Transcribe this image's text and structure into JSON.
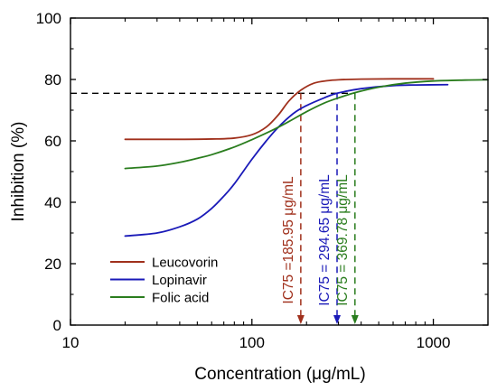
{
  "chart_data": {
    "type": "line",
    "xlabel": "Concentration (μg/mL)",
    "ylabel": "Inhibition (%)",
    "xscale": "log",
    "xlim": [
      10,
      2000
    ],
    "ylim": [
      0,
      100
    ],
    "x_ticks": [
      10,
      100,
      1000
    ],
    "x_tick_labels": [
      "10",
      "100",
      "1000"
    ],
    "y_ticks": [
      0,
      20,
      40,
      60,
      80,
      100
    ],
    "y_tick_labels": [
      "0",
      "20",
      "40",
      "60",
      "80",
      "100"
    ],
    "grid": false,
    "legend_position": "bottom-left",
    "series": [
      {
        "name": "Leucovorin",
        "color": "#a0301c",
        "x": [
          20,
          40,
          60,
          80,
          100,
          120,
          140,
          160,
          185.95,
          220,
          260,
          300,
          400,
          600,
          1000
        ],
        "y": [
          60.5,
          60.5,
          60.6,
          60.9,
          62,
          64.5,
          68.5,
          73,
          76.5,
          78.8,
          79.6,
          79.9,
          80.1,
          80.2,
          80.2
        ]
      },
      {
        "name": "Lopinavir",
        "color": "#1a1ab8",
        "x": [
          20,
          30,
          40,
          50,
          60,
          70,
          80,
          100,
          120,
          140,
          170,
          200,
          250,
          294.65,
          400,
          600,
          800,
          1200
        ],
        "y": [
          29,
          30,
          32,
          34.5,
          38,
          42,
          46,
          54,
          60,
          64.5,
          69,
          71.5,
          74,
          75.5,
          77,
          78,
          78.2,
          78.3
        ]
      },
      {
        "name": "Folic acid",
        "color": "#2a7d1e",
        "x": [
          20,
          30,
          40,
          50,
          60,
          80,
          100,
          130,
          160,
          200,
          250,
          300,
          369.78,
          500,
          700,
          1000,
          1500,
          2000
        ],
        "y": [
          51,
          51.8,
          53,
          54.3,
          55.5,
          58,
          60.4,
          63.5,
          66.3,
          69.5,
          72.3,
          74,
          75.7,
          77.5,
          78.8,
          79.5,
          79.8,
          79.9
        ]
      }
    ],
    "reference_line": {
      "y": 75.5,
      "x_start": 10,
      "x_end": 369.78
    },
    "annotations": [
      {
        "x": 185.95,
        "text": "IC75 =185.95 μg/mL",
        "color": "#a0301c"
      },
      {
        "x": 294.65,
        "text": "IC75 = 294.65 μg/mL",
        "color": "#1a1ab8"
      },
      {
        "x": 369.78,
        "text": "IC75 = 369.78 μg/mL",
        "color": "#2a7d1e"
      }
    ]
  }
}
